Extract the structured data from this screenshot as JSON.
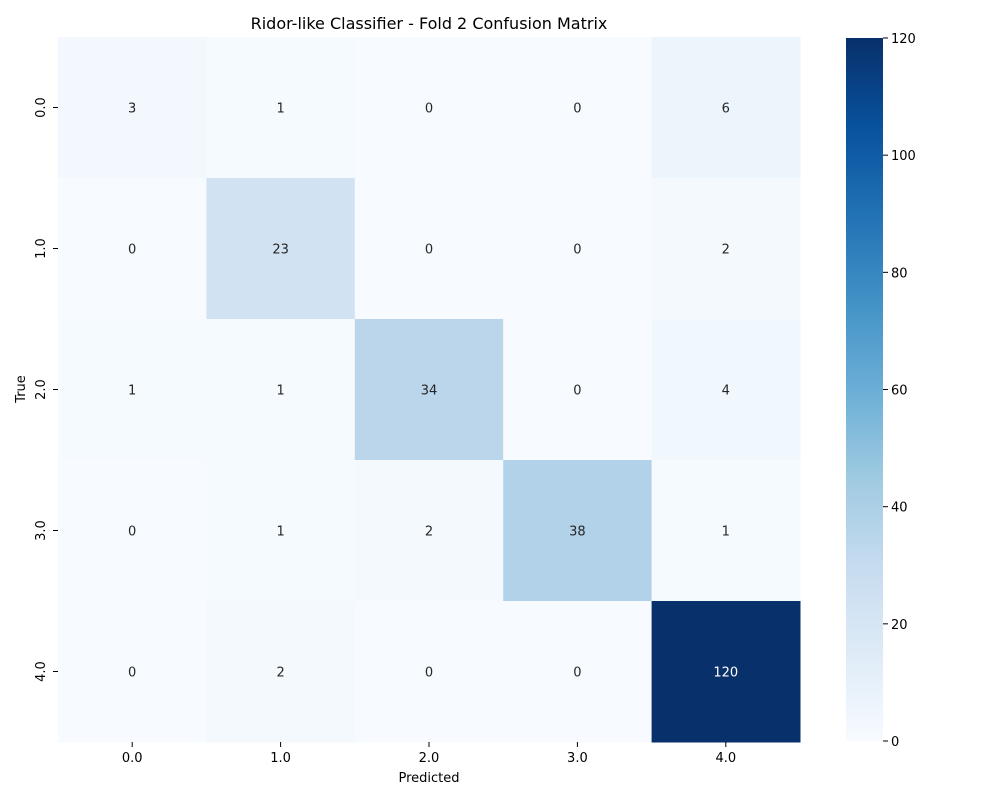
{
  "chart_data": {
    "type": "heatmap",
    "title": "Ridor-like Classifier - Fold 2 Confusion Matrix",
    "xlabel": "Predicted",
    "ylabel": "True",
    "x_categories": [
      "0.0",
      "1.0",
      "2.0",
      "3.0",
      "4.0"
    ],
    "y_categories": [
      "0.0",
      "1.0",
      "2.0",
      "3.0",
      "4.0"
    ],
    "values": [
      [
        3,
        1,
        0,
        0,
        6
      ],
      [
        0,
        23,
        0,
        0,
        2
      ],
      [
        1,
        1,
        34,
        0,
        4
      ],
      [
        0,
        1,
        2,
        38,
        1
      ],
      [
        0,
        2,
        0,
        0,
        120
      ]
    ],
    "colorbar": {
      "colormap": "Blues",
      "range": [
        0,
        120
      ],
      "ticks": [
        "0",
        "20",
        "40",
        "60",
        "80",
        "100",
        "120"
      ]
    },
    "annotations": true,
    "grid": false
  }
}
